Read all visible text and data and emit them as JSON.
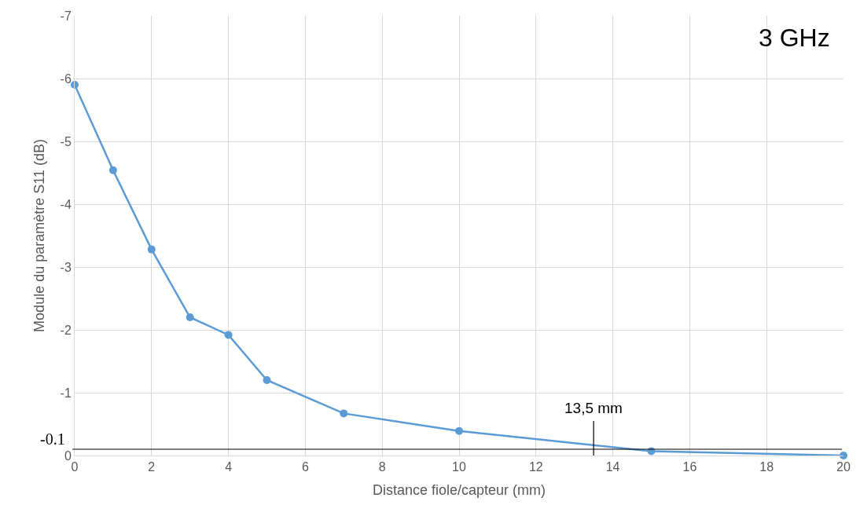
{
  "chart_data": {
    "type": "line",
    "xlabel": "Distance fiole/capteur (mm)",
    "ylabel": "Module du paramètre S11 (dB)",
    "x": [
      0,
      1,
      2,
      3,
      4,
      5,
      7,
      10,
      15,
      20
    ],
    "series": [
      {
        "color": "#5b9bd5",
        "values": [
          -5.9,
          -4.54,
          -3.28,
          -2.2,
          -1.92,
          -1.2,
          -0.67,
          -0.39,
          -0.07,
          0
        ]
      }
    ],
    "xlim": [
      0,
      20
    ],
    "xticks": [
      0,
      2,
      4,
      6,
      8,
      10,
      12,
      14,
      16,
      18,
      20
    ],
    "ylim": [
      0,
      -7
    ],
    "yticks": [
      0,
      -1,
      -2,
      -3,
      -4,
      -5,
      -6,
      -7
    ],
    "grid": true,
    "marker": "circle",
    "line_style": "solid",
    "ref_lines": [
      {
        "axis": "y",
        "value": -0.1,
        "label": "-0.1",
        "color": "#000000"
      },
      {
        "axis": "x",
        "value": 13.5,
        "label": "13,5 mm",
        "color": "#000000"
      }
    ],
    "annotations": [
      "3 GHz"
    ]
  }
}
